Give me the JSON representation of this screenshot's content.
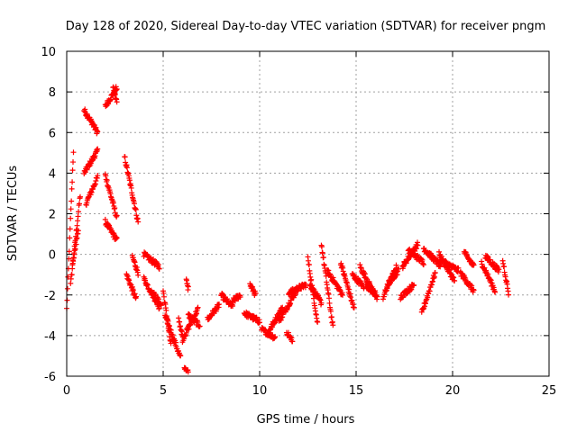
{
  "chart_data": {
    "type": "scatter",
    "title": "Day 128 of 2020, Sidereal Day-to-day VTEC variation (SDTVAR) for receiver pngm",
    "xlabel": "GPS time / hours",
    "ylabel": "SDTVAR / TECUs",
    "xlim": [
      0,
      25
    ],
    "ylim": [
      -6,
      10
    ],
    "xticks": [
      0,
      5,
      10,
      15,
      20,
      25
    ],
    "yticks": [
      -6,
      -4,
      -2,
      0,
      2,
      4,
      6,
      8,
      10
    ],
    "grid": true,
    "marker": "plus",
    "color": "#ff0000",
    "segments": [
      {
        "t0": 0.0,
        "t1": 0.35,
        "v0": -2.7,
        "v1": 5.1
      },
      {
        "t0": 0.2,
        "t1": 0.7,
        "v0": -1.5,
        "v1": 2.9
      },
      {
        "t0": 0.3,
        "t1": 0.6,
        "v0": -0.5,
        "v1": 1.2
      },
      {
        "t0": 0.9,
        "t1": 1.3,
        "v0": 7.1,
        "v1": 6.5
      },
      {
        "t0": 1.3,
        "t1": 1.6,
        "v0": 6.5,
        "v1": 6.0
      },
      {
        "t0": 0.9,
        "t1": 1.6,
        "v0": 4.0,
        "v1": 5.1
      },
      {
        "t0": 1.0,
        "t1": 1.6,
        "v0": 2.5,
        "v1": 3.8
      },
      {
        "t0": 2.0,
        "t1": 2.6,
        "v0": 7.3,
        "v1": 8.2
      },
      {
        "t0": 2.4,
        "t1": 2.6,
        "v0": 8.2,
        "v1": 7.5
      },
      {
        "t0": 2.0,
        "t1": 2.6,
        "v0": 3.9,
        "v1": 1.8
      },
      {
        "t0": 2.0,
        "t1": 2.6,
        "v0": 1.6,
        "v1": 0.7
      },
      {
        "t0": 3.0,
        "t1": 3.7,
        "v0": 4.8,
        "v1": 1.6
      },
      {
        "t0": 3.1,
        "t1": 3.6,
        "v0": -1.0,
        "v1": -2.2
      },
      {
        "t0": 3.4,
        "t1": 3.7,
        "v0": -0.1,
        "v1": -0.9
      },
      {
        "t0": 4.0,
        "t1": 4.8,
        "v0": 0.0,
        "v1": -0.6
      },
      {
        "t0": 4.0,
        "t1": 4.8,
        "v0": -1.2,
        "v1": -2.6
      },
      {
        "t0": 4.4,
        "t1": 4.9,
        "v0": -1.8,
        "v1": -2.5
      },
      {
        "t0": 5.0,
        "t1": 5.4,
        "v0": -1.8,
        "v1": -4.5
      },
      {
        "t0": 5.1,
        "t1": 5.9,
        "v0": -3.0,
        "v1": -5.1
      },
      {
        "t0": 5.8,
        "t1": 6.0,
        "v0": -3.2,
        "v1": -4.0
      },
      {
        "t0": 6.2,
        "t1": 6.3,
        "v0": -1.3,
        "v1": -1.7
      },
      {
        "t0": 6.1,
        "t1": 6.3,
        "v0": -5.5,
        "v1": -5.8
      },
      {
        "t0": 6.0,
        "t1": 6.8,
        "v0": -4.2,
        "v1": -2.7
      },
      {
        "t0": 6.3,
        "t1": 6.9,
        "v0": -3.0,
        "v1": -3.5
      },
      {
        "t0": 7.3,
        "t1": 7.9,
        "v0": -3.2,
        "v1": -2.5
      },
      {
        "t0": 8.0,
        "t1": 8.6,
        "v0": -2.0,
        "v1": -2.6
      },
      {
        "t0": 8.6,
        "t1": 9.0,
        "v0": -2.3,
        "v1": -2.0
      },
      {
        "t0": 9.2,
        "t1": 10.0,
        "v0": -2.9,
        "v1": -3.3
      },
      {
        "t0": 9.5,
        "t1": 9.8,
        "v0": -1.5,
        "v1": -2.0
      },
      {
        "t0": 10.1,
        "t1": 10.8,
        "v0": -3.7,
        "v1": -4.1
      },
      {
        "t0": 10.4,
        "t1": 11.2,
        "v0": -3.9,
        "v1": -2.6
      },
      {
        "t0": 11.0,
        "t1": 11.9,
        "v0": -3.3,
        "v1": -1.8
      },
      {
        "t0": 11.4,
        "t1": 11.7,
        "v0": -3.8,
        "v1": -4.3
      },
      {
        "t0": 11.5,
        "t1": 12.4,
        "v0": -1.9,
        "v1": -1.5
      },
      {
        "t0": 12.5,
        "t1": 13.0,
        "v0": -0.2,
        "v1": -3.4
      },
      {
        "t0": 12.6,
        "t1": 13.2,
        "v0": -1.5,
        "v1": -2.4
      },
      {
        "t0": 13.2,
        "t1": 13.8,
        "v0": 0.5,
        "v1": -3.6
      },
      {
        "t0": 13.5,
        "t1": 14.3,
        "v0": -0.8,
        "v1": -2.0
      },
      {
        "t0": 14.2,
        "t1": 14.9,
        "v0": -0.4,
        "v1": -2.7
      },
      {
        "t0": 14.8,
        "t1": 15.4,
        "v0": -1.0,
        "v1": -1.6
      },
      {
        "t0": 15.2,
        "t1": 16.1,
        "v0": -0.6,
        "v1": -2.2
      },
      {
        "t0": 15.5,
        "t1": 16.0,
        "v0": -1.6,
        "v1": -1.9
      },
      {
        "t0": 16.4,
        "t1": 17.1,
        "v0": -2.1,
        "v1": -0.6
      },
      {
        "t0": 16.6,
        "t1": 17.2,
        "v0": -1.5,
        "v1": -0.8
      },
      {
        "t0": 17.4,
        "t1": 18.2,
        "v0": -0.6,
        "v1": 0.5
      },
      {
        "t0": 17.7,
        "t1": 18.5,
        "v0": 0.2,
        "v1": -0.4
      },
      {
        "t0": 17.3,
        "t1": 18.0,
        "v0": -2.1,
        "v1": -1.5
      },
      {
        "t0": 18.5,
        "t1": 19.4,
        "v0": 0.3,
        "v1": -0.6
      },
      {
        "t0": 18.4,
        "t1": 19.1,
        "v0": -2.9,
        "v1": -0.9
      },
      {
        "t0": 19.3,
        "t1": 20.1,
        "v0": 0.0,
        "v1": -1.3
      },
      {
        "t0": 19.6,
        "t1": 20.3,
        "v0": -0.4,
        "v1": -0.8
      },
      {
        "t0": 20.4,
        "t1": 21.1,
        "v0": -0.9,
        "v1": -1.8
      },
      {
        "t0": 20.6,
        "t1": 21.1,
        "v0": 0.1,
        "v1": -0.6
      },
      {
        "t0": 21.5,
        "t1": 22.2,
        "v0": -0.4,
        "v1": -1.8
      },
      {
        "t0": 21.7,
        "t1": 22.4,
        "v0": -0.1,
        "v1": -0.8
      },
      {
        "t0": 22.6,
        "t1": 22.9,
        "v0": -0.3,
        "v1": -1.9
      }
    ]
  }
}
